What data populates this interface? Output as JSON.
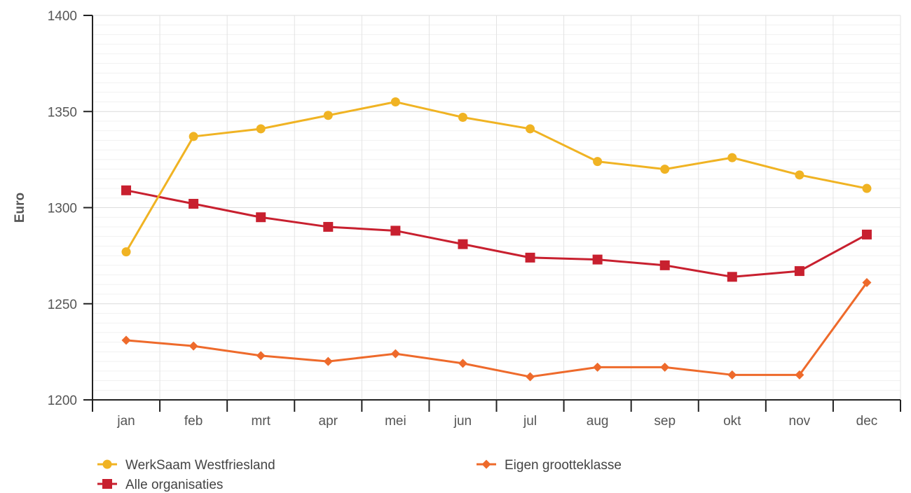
{
  "chart_data": {
    "type": "line",
    "ylabel": "Euro",
    "xlabel": "",
    "ylim": [
      1200,
      1400
    ],
    "yticks": [
      1200,
      1250,
      1300,
      1350,
      1400
    ],
    "minor_grid_step": 5,
    "grid": true,
    "legend_position": "bottom",
    "categories": [
      "jan",
      "feb",
      "mrt",
      "apr",
      "mei",
      "jun",
      "jul",
      "aug",
      "sep",
      "okt",
      "nov",
      "dec"
    ],
    "series": [
      {
        "name": "WerkSaam Westfriesland",
        "color": "#F0B323",
        "marker": "circle",
        "values": [
          1277,
          1337,
          1341,
          1348,
          1355,
          1347,
          1341,
          1324,
          1320,
          1326,
          1317,
          1310
        ]
      },
      {
        "name": "Alle organisaties",
        "color": "#C8202F",
        "marker": "square",
        "values": [
          1309,
          1302,
          1295,
          1290,
          1288,
          1281,
          1274,
          1273,
          1270,
          1264,
          1267,
          1286
        ]
      },
      {
        "name": "Eigen grootteklasse",
        "color": "#EE6A2B",
        "marker": "diamond",
        "values": [
          1231,
          1228,
          1223,
          1220,
          1224,
          1219,
          1212,
          1217,
          1217,
          1213,
          1213,
          1261
        ]
      }
    ]
  }
}
